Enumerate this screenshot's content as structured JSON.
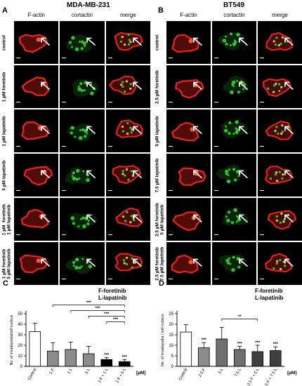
{
  "panelA": {
    "letter": "A",
    "title": "MDA-MB-231",
    "columns": [
      "F-actin",
      "cortactin",
      "merge"
    ],
    "rows": [
      "control",
      "1 µM foretinib",
      "1 µM lapatinib",
      "5 µM lapatinib",
      "1 µM  foretinib\n1 µM lapatinib",
      "1 µM foretinib\n5 µM lapatinib"
    ]
  },
  "panelB": {
    "letter": "B",
    "title": "BT549",
    "columns": [
      "F-actin",
      "cortactin",
      "merge"
    ],
    "rows": [
      "control",
      "2.5 µM foretinib",
      "5 µM lapatinib",
      "7.5 µM lapatinib",
      "2.5 µM foretinib\n5 µM lapatinib",
      "2.5 µM foretinib\n7.5 µM lapatinib"
    ]
  },
  "colors": {
    "factin": "#e8231c",
    "cortactin": "#33c22b",
    "merge_hi": "#d9c83a"
  },
  "icons": [
    "arrow-icon"
  ],
  "chart_data": [
    {
      "panel": "C",
      "type": "bar",
      "legend_text": "F-foretinib\nL-lapatinib",
      "ylabel": "No. of invadopodia/cell nucleus",
      "xunit": "[µM]",
      "ylim": [
        0,
        50
      ],
      "yticks": [
        0,
        10,
        20,
        30,
        40,
        50
      ],
      "categories": [
        "Control",
        "1 F",
        "1 L",
        "5 L",
        "1 F + 1 L",
        "1 F + 5 L"
      ],
      "values": [
        33,
        14.5,
        16,
        12,
        6.5,
        4.5
      ],
      "errors": [
        8,
        8,
        7,
        7,
        2,
        2
      ],
      "fills": [
        "#ffffff",
        "#8c8c8c",
        "#8c8c8c",
        "#8c8c8c",
        "#000000",
        "#000000"
      ],
      "bar_labels": [
        "",
        "",
        "",
        "",
        "***",
        "***"
      ],
      "brackets": [
        {
          "from": 1,
          "to": 5,
          "label": "***"
        },
        {
          "from": 2,
          "to": 5,
          "label": "***"
        },
        {
          "from": 3,
          "to": 5,
          "label": "***"
        },
        {
          "from": 4,
          "to": 5,
          "label": "***"
        }
      ]
    },
    {
      "panel": "D",
      "type": "bar",
      "legend_text": "F-foretinib\nL-lapatinib",
      "ylabel": "No. of invadopodia / cell nucleus",
      "xunit": "[µM]",
      "ylim": [
        0,
        25
      ],
      "yticks": [
        0,
        5,
        10,
        15,
        20,
        25
      ],
      "categories": [
        "Control",
        "2.5 F",
        "5 L",
        "7.5 L",
        "2.5 F + 5 L",
        "2.5 F + 7.5 L"
      ],
      "values": [
        16.3,
        8.8,
        13,
        8,
        7,
        7.5
      ],
      "errors": [
        3.5,
        2.5,
        5.5,
        1.5,
        3,
        1.8
      ],
      "fills": [
        "#ffffff",
        "#8c8c8c",
        "#707070",
        "#707070",
        "#404040",
        "#404040"
      ],
      "bar_labels": [
        "",
        "***",
        "",
        "***",
        "***",
        "***"
      ],
      "brackets": [
        {
          "from": 2,
          "to": 4,
          "label": "**"
        }
      ]
    }
  ]
}
